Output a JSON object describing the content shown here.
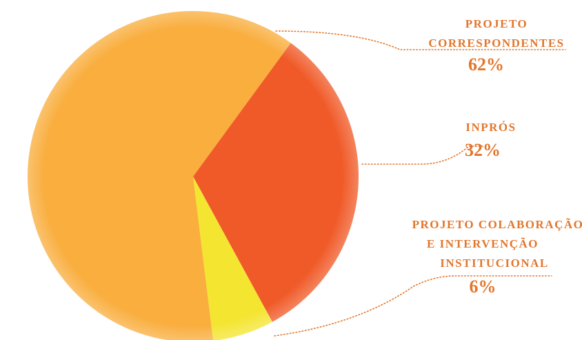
{
  "chart_data": {
    "type": "pie",
    "categories": [
      [
        "PROJETO",
        "CORRESPONDENTES"
      ],
      [
        "INPRÓS"
      ],
      [
        "PROJETO COLABORAÇÃO",
        "E INTERVENÇÃO",
        "INSTITUCIONAL"
      ]
    ],
    "values": [
      62,
      32,
      6
    ],
    "value_labels": [
      "62%",
      "32%",
      "6%"
    ],
    "colors": [
      "#f9ae3e",
      "#f05a28",
      "#f4e531"
    ]
  }
}
